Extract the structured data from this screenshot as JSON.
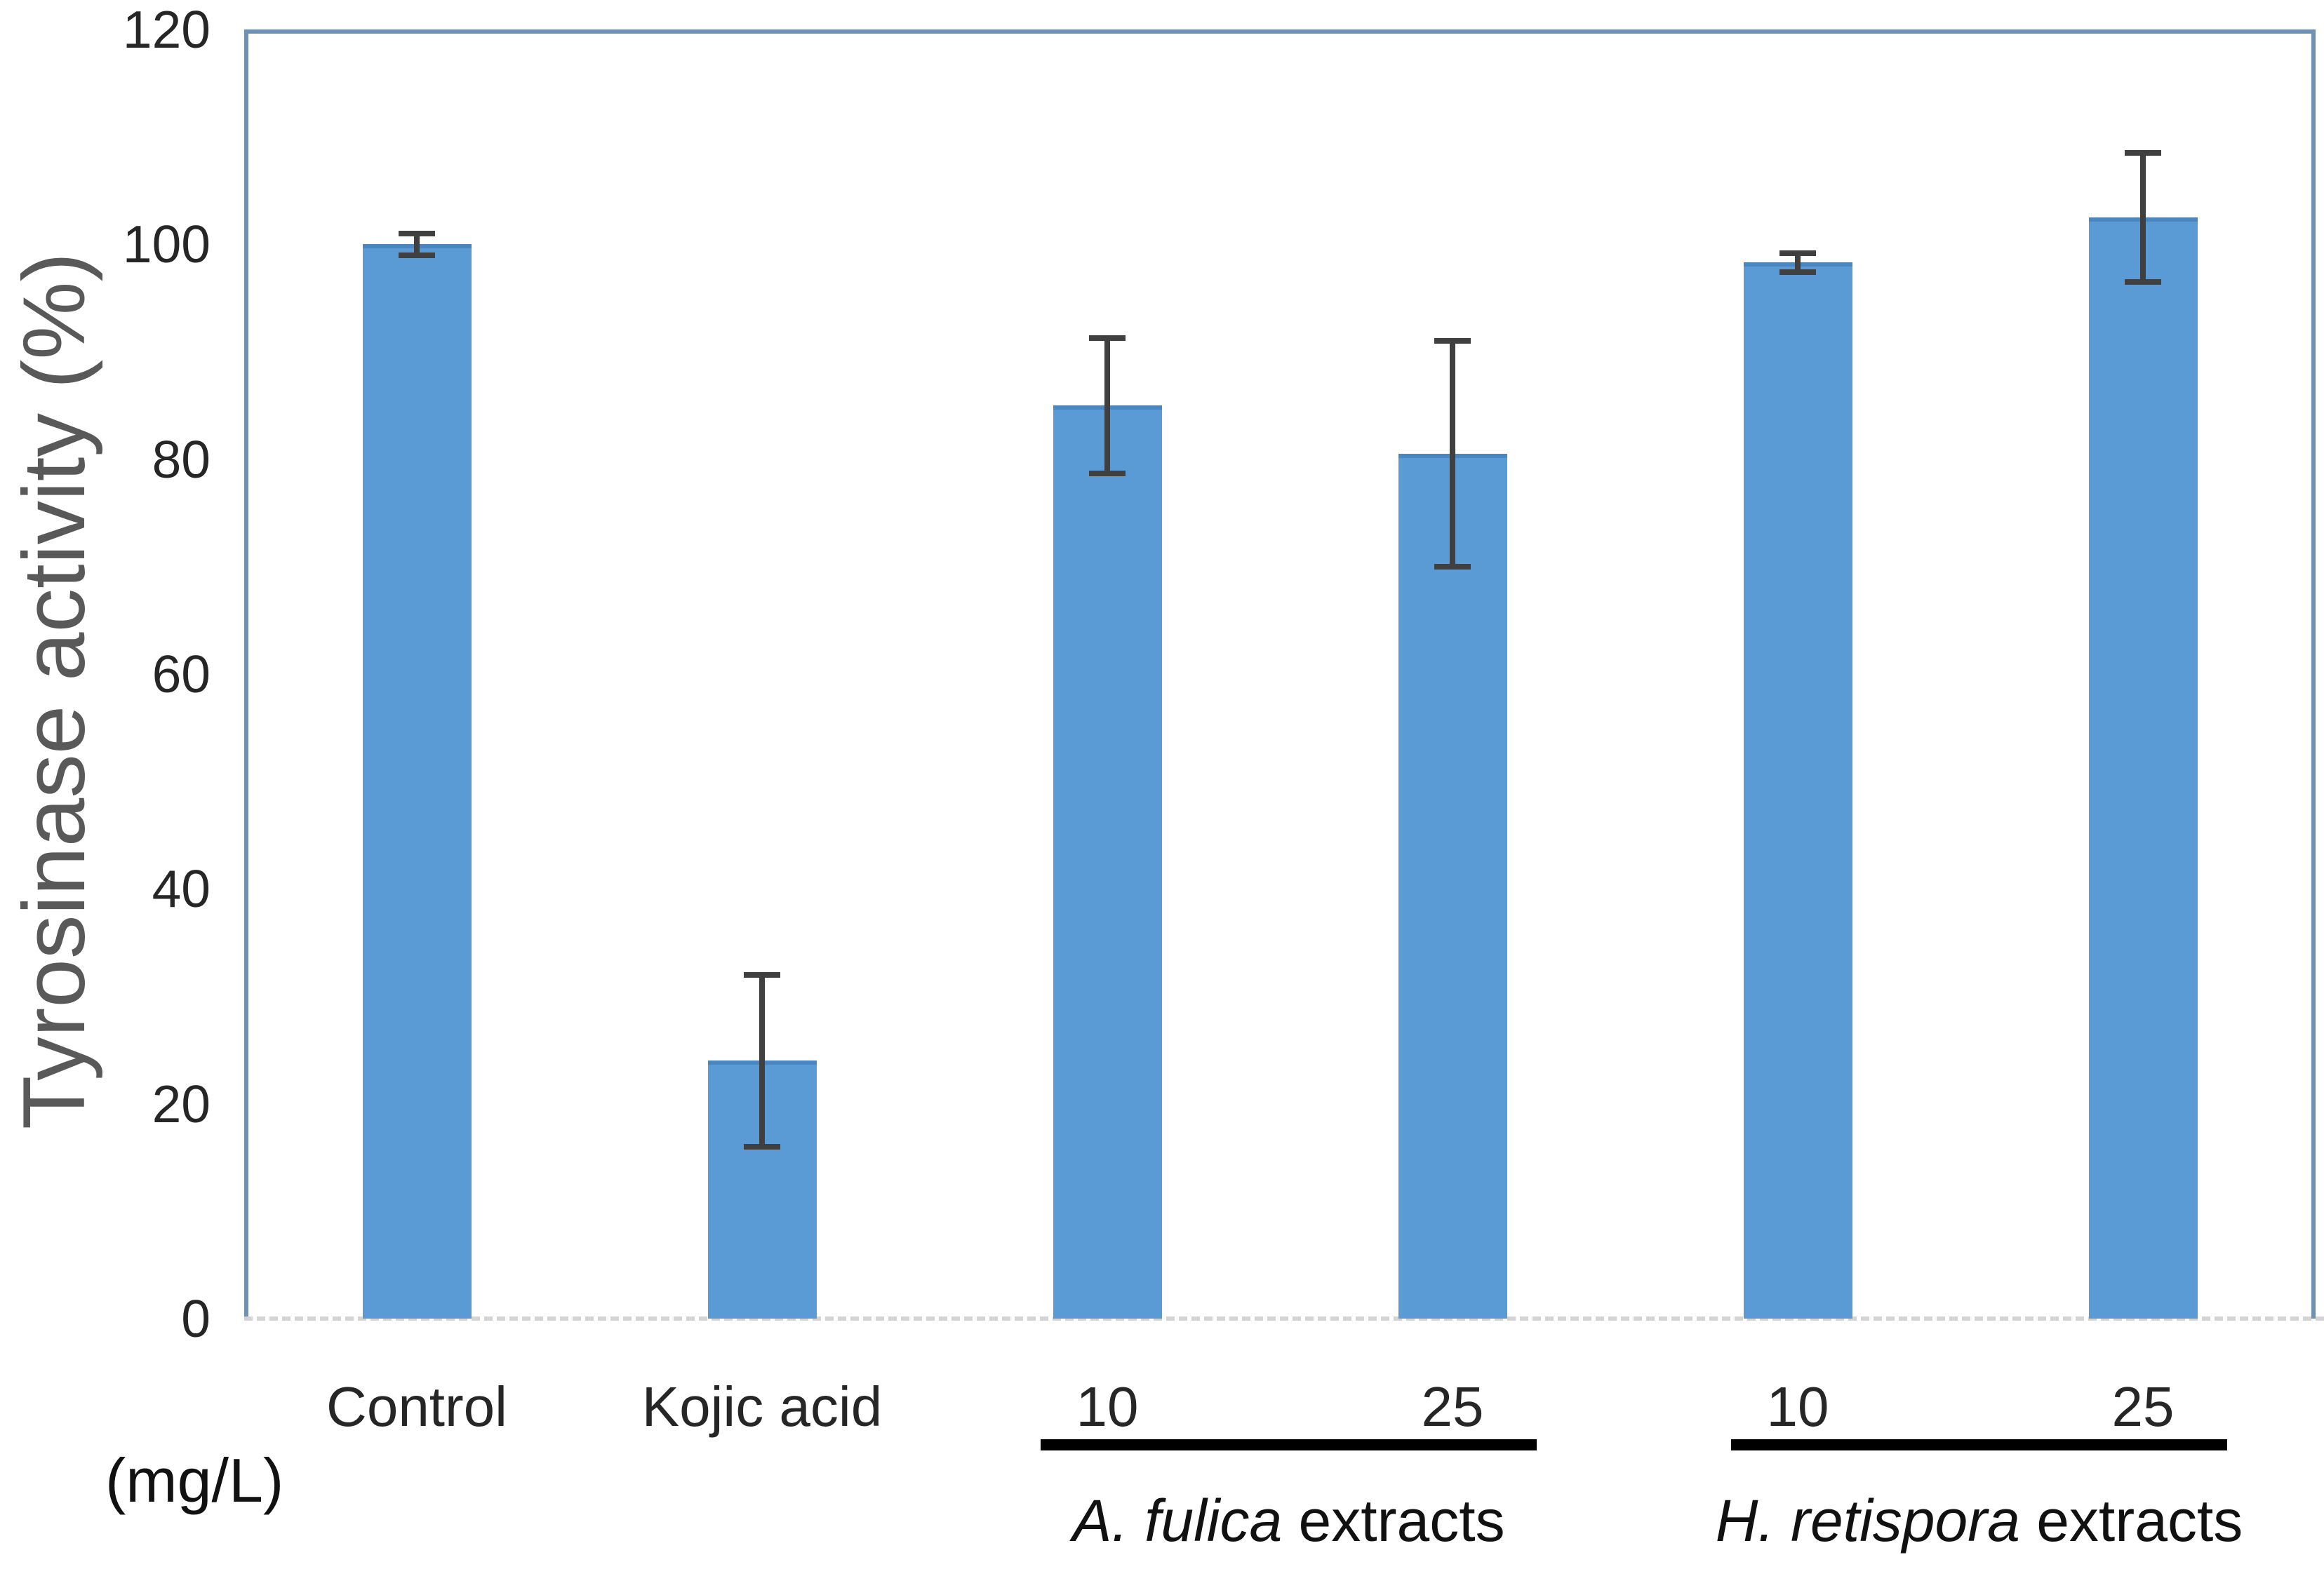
{
  "chart_data": {
    "type": "bar",
    "title": "",
    "ylabel": "Tyrosinase activity (%)",
    "xlabel": "",
    "units_label": "(mg/L)",
    "ylim": [
      0,
      120
    ],
    "yticks": [
      0,
      20,
      40,
      60,
      80,
      100,
      120
    ],
    "grid": false,
    "legend_position": null,
    "categories": [
      "Control",
      "Kojic acid",
      "10",
      "25",
      "10",
      "25"
    ],
    "series": [
      {
        "name": "Tyrosinase activity (%)",
        "values": [
          100,
          24,
          85,
          80.5,
          98.3,
          102.5
        ],
        "errors": [
          1,
          8,
          6.3,
          10.5,
          0.9,
          6
        ]
      }
    ],
    "group_annotations": [
      {
        "italic_text": "A. fulica",
        "regular_text": " extracts",
        "category_span": [
          2,
          3
        ]
      },
      {
        "italic_text": "H. retispora",
        "regular_text": " extracts",
        "category_span": [
          4,
          5
        ]
      }
    ],
    "colors": {
      "bar_fill": "#5B9BD5",
      "bar_top_edge": "#4A86C2",
      "error_bar": "#404040",
      "axis_frame": "#6E91B4",
      "baseline_dash": "#D4D4D4",
      "tick_text": "#262626",
      "axis_title_text": "#595959",
      "annotation_line": "#000000",
      "annotation_text": "#111111"
    }
  }
}
